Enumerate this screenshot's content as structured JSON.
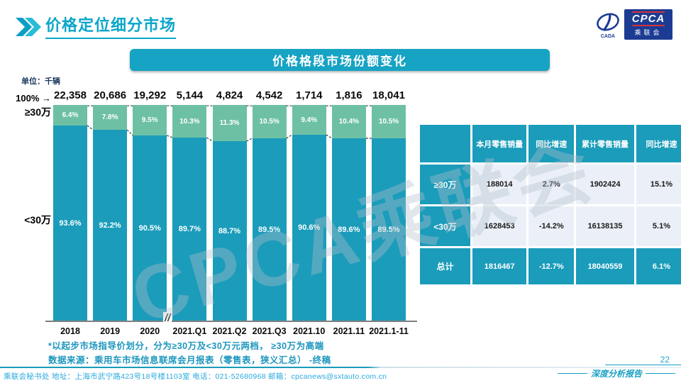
{
  "header": {
    "title": "价格定位细分市场",
    "logo": {
      "brand": "CPCA",
      "brand_cn": "乘联会",
      "emblem_text": "CADA"
    }
  },
  "chart": {
    "banner_title": "价格格段市场份额变化",
    "unit_label": "单位：千辆",
    "left_labels": {
      "axis_top": "100% →",
      "high": "≥30万",
      "low": "<30万"
    },
    "axis_break": "//"
  },
  "chart_data": {
    "type": "bar",
    "subtype": "stacked-100-percent",
    "title": "价格格段市场份额变化",
    "unit": "千辆",
    "categories": [
      "2018",
      "2019",
      "2020",
      "2021.Q1",
      "2021.Q2",
      "2021.Q3",
      "2021.10",
      "2021.11",
      "2021.1-11"
    ],
    "totals": [
      "22,358",
      "20,686",
      "19,292",
      "5,144",
      "4,824",
      "4,542",
      "1,714",
      "1,816",
      "18,041"
    ],
    "series": [
      {
        "name": "≥30万",
        "values": [
          6.4,
          7.8,
          9.5,
          10.3,
          11.3,
          10.5,
          9.4,
          10.4,
          10.5
        ],
        "color": "#6EC0A5"
      },
      {
        "name": "<30万",
        "values": [
          93.6,
          92.2,
          90.5,
          89.7,
          88.7,
          89.5,
          90.6,
          89.6,
          89.5
        ],
        "color": "#1B9CBA"
      }
    ],
    "value_suffix": "%",
    "ylim": [
      0,
      100
    ],
    "grid": false,
    "legend": "labels-left-of-axis"
  },
  "table": {
    "headers": [
      "",
      "本月零售销量",
      "同比增速",
      "累计零售销量",
      "同比增速"
    ],
    "rows": [
      {
        "label": "≥30万",
        "values": [
          "188014",
          "2.7%",
          "1902424",
          "15.1%"
        ],
        "highlight": false
      },
      {
        "label": "<30万",
        "values": [
          "1628453",
          "-14.2%",
          "16138135",
          "5.1%"
        ],
        "highlight": false
      },
      {
        "label": "总计",
        "values": [
          "1816467",
          "-12.7%",
          "18040559",
          "6.1%"
        ],
        "highlight": true
      }
    ]
  },
  "footnotes": {
    "line1": "*以起步市场指导价划分，分为≥30万及<30万元两档， ≥30万为高端",
    "line2": "数据来源：乘用车市场信息联席会月报表（零售表，狭义汇总） -终稿"
  },
  "watermark": "CPCA乘联会",
  "footer": {
    "contact": "乘联会秘书处   地址：上海市武宁路423号18号楼1103室  电话：021-52680968   邮箱：cpcanews@sxtauto.com.cn",
    "report_label": "深度分析报告",
    "page_number": "22"
  },
  "colors": {
    "teal": "#1B9CBA",
    "green": "#6EC0A5",
    "banner": "#17A3C3",
    "title_accent": "#0BA6C9",
    "logo_blue": "#1C3C94",
    "logo_red": "#D53238",
    "connector": "#3a3a3a"
  }
}
